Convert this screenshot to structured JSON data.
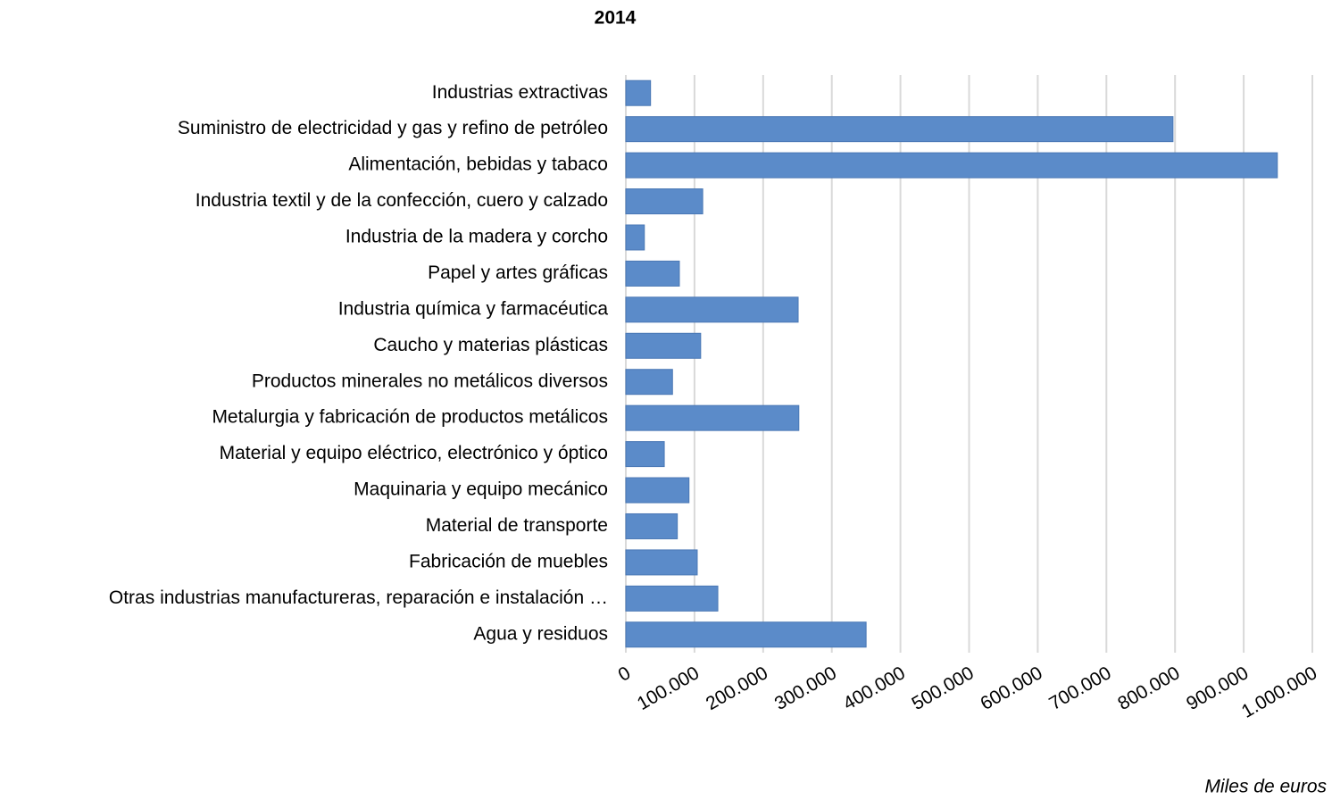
{
  "chart_data": {
    "type": "barh",
    "title": "2014",
    "x_label": "Miles de euros",
    "categories": [
      "Industrias extractivas",
      "Suministro de electricidad y gas y refino de petróleo",
      "Alimentación, bebidas y tabaco",
      "Industria textil y de la confección, cuero y calzado",
      "Industria de la madera y corcho",
      "Papel y artes gráficas",
      "Industria química y farmacéutica",
      "Caucho y materias plásticas",
      "Productos minerales no metálicos diversos",
      "Metalurgia y fabricación de productos metálicos",
      "Material y equipo eléctrico, electrónico y óptico",
      "Maquinaria y equipo mecánico",
      "Material de transporte",
      "Fabricación de muebles",
      "Otras industrias manufactureras, reparación e instalación …",
      "Agua y residuos"
    ],
    "values": [
      36000,
      797000,
      949000,
      112000,
      27000,
      78000,
      251000,
      109000,
      68000,
      252000,
      56000,
      92000,
      75000,
      104000,
      134000,
      350000
    ],
    "color": "#5b8bc9",
    "xlim": [
      0,
      1000000
    ],
    "xticks": [
      0,
      {
        "value": 100000,
        "label": "100.000"
      },
      {
        "value": 200000,
        "label": "200.000"
      },
      {
        "value": 300000,
        "label": "300.000"
      },
      {
        "value": 400000,
        "label": "400.000"
      },
      {
        "value": 500000,
        "label": "500.000"
      },
      {
        "value": 600000,
        "label": "600.000"
      },
      {
        "value": 700000,
        "label": "700.000"
      },
      {
        "value": 800000,
        "label": "800.000"
      },
      {
        "value": 900000,
        "label": "900.000"
      },
      {
        "value": 1000000,
        "label": "1.000.000"
      }
    ],
    "grid": true
  }
}
